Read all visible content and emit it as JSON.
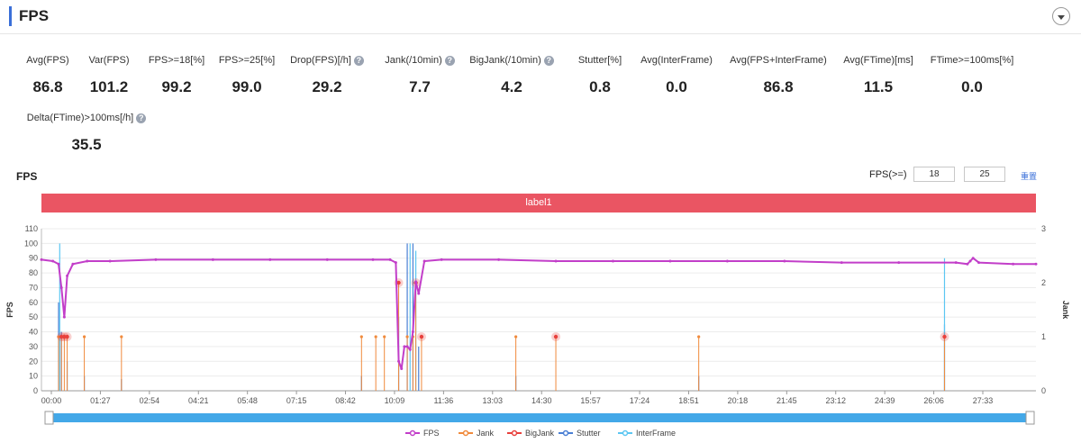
{
  "header": {
    "title": "FPS"
  },
  "metrics": [
    {
      "label": "Avg(FPS)",
      "value": "86.8",
      "help": false
    },
    {
      "label": "Var(FPS)",
      "value": "101.2",
      "help": false
    },
    {
      "label": "FPS>=18[%]",
      "value": "99.2",
      "help": false
    },
    {
      "label": "FPS>=25[%]",
      "value": "99.0",
      "help": false
    },
    {
      "label": "Drop(FPS)[/h]",
      "value": "29.2",
      "help": true
    },
    {
      "label": "Jank(/10min)",
      "value": "7.7",
      "help": true
    },
    {
      "label": "BigJank(/10min)",
      "value": "4.2",
      "help": true
    },
    {
      "label": "Stutter[%]",
      "value": "0.8",
      "help": false
    },
    {
      "label": "Avg(InterFrame)",
      "value": "0.0",
      "help": false
    },
    {
      "label": "Avg(FPS+InterFrame)",
      "value": "86.8",
      "help": false
    },
    {
      "label": "Avg(FTime)[ms]",
      "value": "11.5",
      "help": false
    },
    {
      "label": "FTime>=100ms[%]",
      "value": "0.0",
      "help": false
    },
    {
      "label": "Delta(FTime)>100ms[/h]",
      "value": "35.5",
      "help": true
    }
  ],
  "help_glyph": "?",
  "chart_section": {
    "title": "FPS",
    "threshold_label": "FPS(>=)",
    "threshold_low": "18",
    "threshold_high": "25",
    "reset_label": "重置",
    "band_label": "label1"
  },
  "colors": {
    "fps": "#c23ec9",
    "jank": "#f08a3c",
    "bigjank": "#e8403c",
    "stutter": "#4a7fd4",
    "interframe": "#5cc6f2",
    "band": "#ea5563",
    "scrollbar": "#43a8e8"
  },
  "chart_data": {
    "type": "line",
    "title": "",
    "xlabel": "",
    "ylabel": "FPS",
    "y2label": "Jank",
    "ylim": [
      0,
      110
    ],
    "y2lim": [
      0,
      3
    ],
    "y_ticks": [
      0,
      10,
      20,
      30,
      40,
      50,
      60,
      70,
      80,
      90,
      100,
      110
    ],
    "y2_ticks": [
      0,
      1,
      2,
      3
    ],
    "x_ticks": [
      "00:00",
      "01:27",
      "02:54",
      "04:21",
      "05:48",
      "07:15",
      "08:42",
      "10:09",
      "11:36",
      "13:03",
      "14:30",
      "15:57",
      "17:24",
      "18:51",
      "20:18",
      "21:45",
      "23:12",
      "24:39",
      "26:06",
      "27:33"
    ],
    "x_range_seconds": [
      0,
      1740
    ],
    "legend_position": "bottom",
    "series": [
      {
        "name": "FPS",
        "axis": "left",
        "points": [
          [
            0,
            89
          ],
          [
            20,
            88
          ],
          [
            30,
            86
          ],
          [
            35,
            70
          ],
          [
            40,
            50
          ],
          [
            45,
            78
          ],
          [
            55,
            86
          ],
          [
            80,
            88
          ],
          [
            120,
            88
          ],
          [
            200,
            89
          ],
          [
            300,
            89
          ],
          [
            400,
            89
          ],
          [
            500,
            89
          ],
          [
            580,
            89
          ],
          [
            610,
            89
          ],
          [
            620,
            87
          ],
          [
            625,
            20
          ],
          [
            630,
            15
          ],
          [
            635,
            30
          ],
          [
            640,
            30
          ],
          [
            645,
            28
          ],
          [
            650,
            40
          ],
          [
            655,
            74
          ],
          [
            660,
            66
          ],
          [
            670,
            88
          ],
          [
            700,
            89
          ],
          [
            800,
            89
          ],
          [
            900,
            88
          ],
          [
            1000,
            88
          ],
          [
            1100,
            88
          ],
          [
            1200,
            88
          ],
          [
            1300,
            88
          ],
          [
            1400,
            87
          ],
          [
            1500,
            87
          ],
          [
            1600,
            87
          ],
          [
            1620,
            86
          ],
          [
            1625,
            88
          ],
          [
            1630,
            90
          ],
          [
            1640,
            87
          ],
          [
            1700,
            86
          ],
          [
            1740,
            86
          ]
        ]
      },
      {
        "name": "Jank",
        "axis": "right",
        "spikes": [
          [
            30,
            1
          ],
          [
            35,
            1
          ],
          [
            40,
            1
          ],
          [
            45,
            1
          ],
          [
            75,
            1
          ],
          [
            140,
            1
          ],
          [
            560,
            1
          ],
          [
            585,
            1
          ],
          [
            600,
            1
          ],
          [
            625,
            2
          ],
          [
            640,
            1
          ],
          [
            650,
            1
          ],
          [
            655,
            2
          ],
          [
            665,
            1
          ],
          [
            830,
            1
          ],
          [
            900,
            1
          ],
          [
            1150,
            1
          ],
          [
            1580,
            1
          ]
        ]
      },
      {
        "name": "BigJank",
        "axis": "right",
        "spikes": [
          [
            35,
            1
          ],
          [
            40,
            1
          ],
          [
            45,
            1
          ],
          [
            625,
            2
          ],
          [
            655,
            2
          ],
          [
            665,
            1
          ],
          [
            900,
            1
          ],
          [
            1580,
            1
          ]
        ]
      },
      {
        "name": "Stutter",
        "axis": "left",
        "spikes": [
          [
            30,
            60
          ],
          [
            35,
            40
          ],
          [
            45,
            20
          ],
          [
            75,
            10
          ],
          [
            140,
            8
          ],
          [
            560,
            10
          ],
          [
            625,
            50
          ],
          [
            640,
            100
          ],
          [
            650,
            100
          ],
          [
            660,
            30
          ],
          [
            830,
            10
          ],
          [
            1150,
            10
          ],
          [
            1580,
            45
          ]
        ]
      },
      {
        "name": "InterFrame",
        "axis": "left",
        "spikes": [
          [
            32,
            100
          ],
          [
            645,
            100
          ],
          [
            655,
            95
          ],
          [
            1580,
            90
          ]
        ]
      }
    ]
  }
}
